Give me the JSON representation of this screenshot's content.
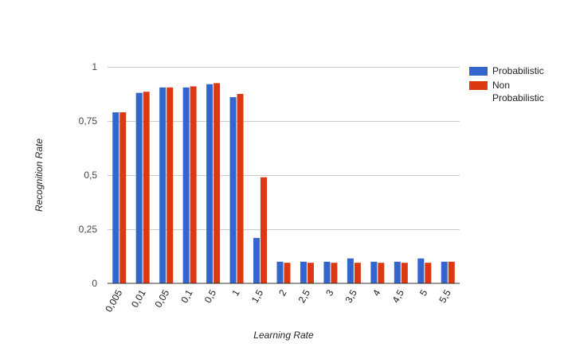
{
  "chart_data": {
    "type": "bar",
    "title": "",
    "xlabel": "Learning Rate",
    "ylabel": "Recognition Rate",
    "ylim": [
      0,
      1
    ],
    "yticks": [
      0,
      0.25,
      0.5,
      0.75,
      1
    ],
    "ytick_labels": [
      "0",
      "0,25",
      "0,5",
      "0,75",
      "1"
    ],
    "grid": true,
    "legend_position": "right",
    "categories": [
      "0,005",
      "0,01",
      "0,05",
      "0,1",
      "0,5",
      "1",
      "1,5",
      "2",
      "2,5",
      "3",
      "3,5",
      "4",
      "4,5",
      "5",
      "5,5"
    ],
    "series": [
      {
        "name": "Probabilistic",
        "color": "#3366cc",
        "values": [
          0.79,
          0.88,
          0.905,
          0.905,
          0.92,
          0.86,
          0.21,
          0.1,
          0.1,
          0.1,
          0.115,
          0.1,
          0.1,
          0.115,
          0.1
        ]
      },
      {
        "name": "Non Probabilistic",
        "color": "#dc3912",
        "values": [
          0.79,
          0.885,
          0.905,
          0.91,
          0.925,
          0.875,
          0.49,
          0.095,
          0.095,
          0.095,
          0.095,
          0.095,
          0.095,
          0.095,
          0.1
        ]
      }
    ]
  },
  "legend": {
    "items": [
      {
        "label_lines": [
          "Probabilistic"
        ]
      },
      {
        "label_lines": [
          "Non",
          "Probabilistic"
        ]
      }
    ]
  }
}
